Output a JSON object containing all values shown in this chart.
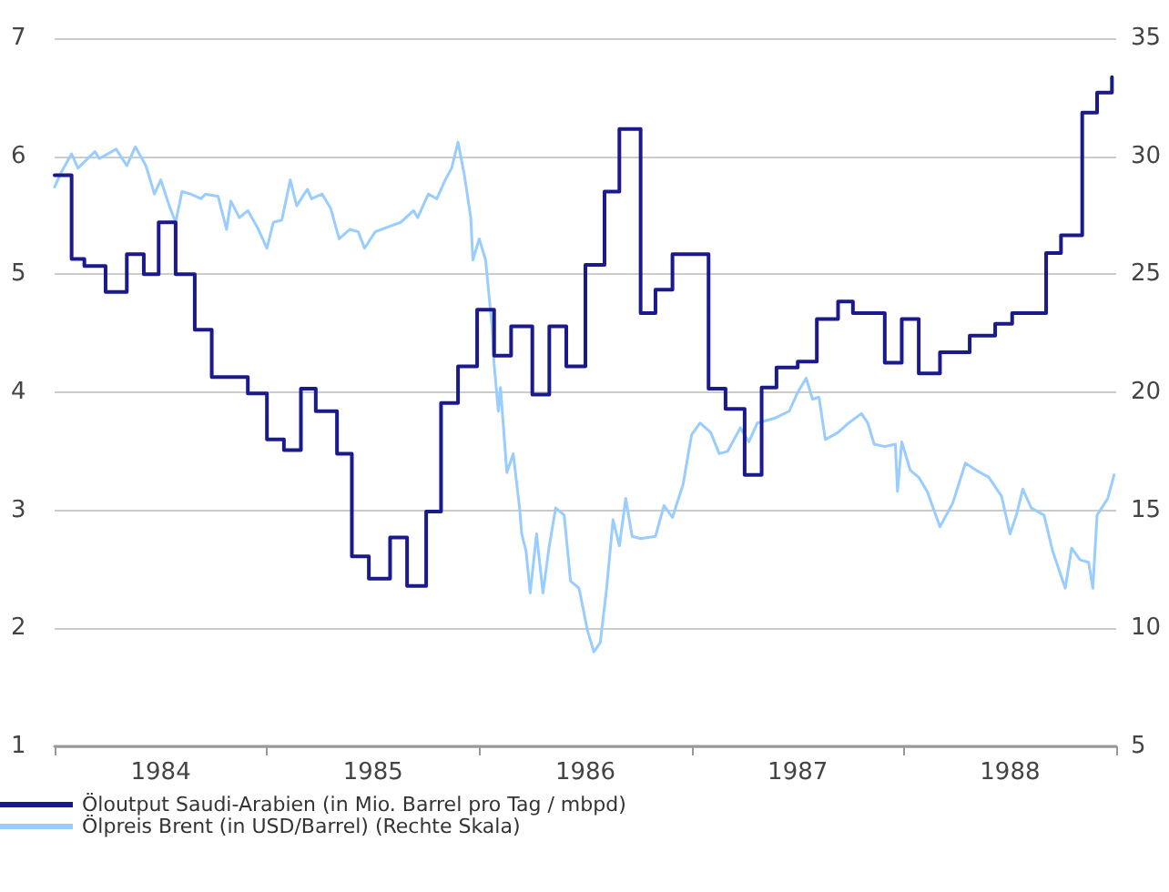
{
  "chart_data": {
    "type": "line",
    "xlim": [
      1984,
      1989
    ],
    "xticks": [
      {
        "value": 1984,
        "label": null
      },
      {
        "value": 1984.5,
        "label": "1984"
      },
      {
        "value": 1985,
        "label": null
      },
      {
        "value": 1985.5,
        "label": "1985"
      },
      {
        "value": 1986,
        "label": null
      },
      {
        "value": 1986.5,
        "label": "1986"
      },
      {
        "value": 1987,
        "label": null
      },
      {
        "value": 1987.5,
        "label": "1987"
      },
      {
        "value": 1988,
        "label": null
      },
      {
        "value": 1988.5,
        "label": "1988"
      },
      {
        "value": 1989,
        "label": null
      }
    ],
    "ylim": [
      1,
      7
    ],
    "yticks": [
      1,
      2,
      3,
      4,
      5,
      6,
      7
    ],
    "y2lim": [
      5,
      35
    ],
    "y2ticks": [
      5,
      10,
      15,
      20,
      25,
      30,
      35
    ],
    "grid": "y",
    "legend": "bottom left",
    "marker": "none",
    "line_style": "solid",
    "series": [
      {
        "name": "Öloutput Saudi-Arabien (in Mio. Barrel pro Tag / mbpd)",
        "type": "step",
        "color": "#1a1a8c",
        "x": [
          1984.0,
          1984.08,
          1984.14,
          1984.24,
          1984.34,
          1984.42,
          1984.49,
          1984.57,
          1984.66,
          1984.74,
          1984.91,
          1985.0,
          1985.08,
          1985.16,
          1985.23,
          1985.33,
          1985.4,
          1985.48,
          1985.58,
          1985.66,
          1985.75,
          1985.82,
          1985.9,
          1985.99,
          1986.07,
          1986.15,
          1986.25,
          1986.33,
          1986.41,
          1986.5,
          1986.59,
          1986.66,
          1986.76,
          1986.83,
          1986.91,
          1987.08,
          1987.16,
          1987.25,
          1987.33,
          1987.4,
          1987.5,
          1987.59,
          1987.69,
          1987.76,
          1987.91,
          1987.99,
          1988.07,
          1988.17,
          1988.31,
          1988.43,
          1988.51,
          1988.67,
          1988.74,
          1988.84,
          1988.91,
          1988.98
        ],
        "values": [
          5.84,
          5.13,
          5.07,
          4.85,
          5.17,
          5.0,
          5.44,
          5.0,
          4.53,
          4.13,
          3.99,
          3.6,
          3.51,
          4.03,
          3.84,
          3.48,
          2.61,
          2.42,
          2.77,
          2.36,
          2.99,
          3.91,
          4.22,
          4.7,
          4.31,
          4.56,
          3.98,
          4.56,
          4.22,
          5.08,
          5.7,
          6.23,
          4.67,
          4.87,
          5.17,
          4.03,
          3.86,
          3.3,
          4.04,
          4.21,
          4.26,
          4.62,
          4.77,
          4.67,
          4.25,
          4.62,
          4.16,
          4.34,
          4.48,
          4.58,
          4.67,
          5.18,
          5.33,
          6.37,
          6.54,
          6.67
        ]
      },
      {
        "name": "Ölpreis Brent (in USD/Barrel) (Rechte Skala)",
        "axis": "y2",
        "color": "#99ccff",
        "x": [
          1984.0,
          1984.03,
          1984.08,
          1984.11,
          1984.19,
          1984.21,
          1984.29,
          1984.34,
          1984.38,
          1984.43,
          1984.47,
          1984.5,
          1984.54,
          1984.57,
          1984.6,
          1984.64,
          1984.69,
          1984.71,
          1984.77,
          1984.81,
          1984.83,
          1984.87,
          1984.91,
          1984.96,
          1985.0,
          1985.03,
          1985.07,
          1985.11,
          1985.14,
          1985.19,
          1985.21,
          1985.26,
          1985.3,
          1985.34,
          1985.39,
          1985.43,
          1985.46,
          1985.51,
          1985.57,
          1985.63,
          1985.69,
          1985.71,
          1985.76,
          1985.8,
          1985.84,
          1985.87,
          1985.9,
          1985.93,
          1985.96,
          1985.97,
          1986.0,
          1986.03,
          1986.06,
          1986.07,
          1986.09,
          1986.1,
          1986.13,
          1986.16,
          1986.19,
          1986.2,
          1986.22,
          1986.24,
          1986.27,
          1986.3,
          1986.33,
          1986.36,
          1986.4,
          1986.43,
          1986.47,
          1986.51,
          1986.54,
          1986.57,
          1986.6,
          1986.63,
          1986.66,
          1986.69,
          1986.72,
          1986.76,
          1986.83,
          1986.87,
          1986.91,
          1986.96,
          1987.0,
          1987.04,
          1987.09,
          1987.13,
          1987.17,
          1987.23,
          1987.27,
          1987.31,
          1987.39,
          1987.46,
          1987.5,
          1987.54,
          1987.57,
          1987.6,
          1987.63,
          1987.69,
          1987.74,
          1987.8,
          1987.83,
          1987.86,
          1987.91,
          1987.96,
          1987.97,
          1987.99,
          1988.03,
          1988.07,
          1988.11,
          1988.17,
          1988.23,
          1988.29,
          1988.34,
          1988.4,
          1988.46,
          1988.5,
          1988.53,
          1988.56,
          1988.6,
          1988.66,
          1988.7,
          1988.76,
          1988.79,
          1988.83,
          1988.87,
          1988.89,
          1988.91,
          1988.96,
          1988.99
        ],
        "values": [
          28.7,
          29.3,
          30.1,
          29.5,
          30.2,
          29.9,
          30.3,
          29.6,
          30.4,
          29.6,
          28.4,
          29.0,
          27.9,
          27.2,
          28.5,
          28.4,
          28.2,
          28.4,
          28.3,
          26.9,
          28.1,
          27.4,
          27.7,
          26.9,
          26.1,
          27.2,
          27.3,
          29.0,
          27.9,
          28.6,
          28.2,
          28.4,
          27.8,
          26.5,
          26.9,
          26.8,
          26.1,
          26.8,
          27.0,
          27.2,
          27.7,
          27.4,
          28.4,
          28.2,
          29.0,
          29.5,
          30.6,
          29.2,
          27.4,
          25.6,
          26.5,
          25.6,
          22.8,
          21.2,
          19.2,
          20.2,
          16.6,
          17.4,
          15.1,
          14.0,
          13.3,
          11.5,
          14.0,
          11.5,
          13.5,
          15.1,
          14.8,
          12.0,
          11.7,
          9.9,
          9.0,
          9.4,
          11.7,
          14.6,
          13.5,
          15.5,
          13.9,
          13.8,
          13.9,
          15.2,
          14.7,
          16.1,
          18.2,
          18.7,
          18.3,
          17.4,
          17.5,
          18.5,
          17.9,
          18.7,
          18.9,
          19.2,
          20.0,
          20.6,
          19.7,
          19.8,
          18.0,
          18.3,
          18.7,
          19.1,
          18.7,
          17.8,
          17.7,
          17.8,
          15.8,
          17.9,
          16.7,
          16.4,
          15.8,
          14.3,
          15.3,
          17.0,
          16.7,
          16.4,
          15.6,
          14.0,
          14.8,
          15.9,
          15.1,
          14.8,
          13.3,
          11.7,
          13.4,
          12.9,
          12.8,
          11.7,
          14.8,
          15.5,
          16.5
        ]
      }
    ]
  }
}
